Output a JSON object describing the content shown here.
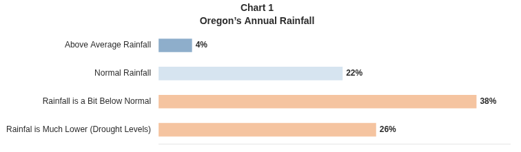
{
  "chart_data": {
    "type": "bar",
    "orientation": "horizontal",
    "title": "Chart 1",
    "subtitle": "Oregon’s Annual Rainfall",
    "categories": [
      "Rainfal is Much Lower (Drought Levels)",
      "Rainfall is a Bit Below Normal",
      "Normal Rainfall",
      "Above Average Rainfall"
    ],
    "values": [
      26,
      38,
      22,
      4
    ],
    "value_labels": [
      "26%",
      "38%",
      "22%",
      "4%"
    ],
    "colors": [
      "#f5c4a0",
      "#f5c4a0",
      "#d6e4f0",
      "#8eaecb"
    ],
    "xlim": [
      0,
      42
    ],
    "data_labels": true,
    "tick_labels": "y",
    "grid": false
  }
}
